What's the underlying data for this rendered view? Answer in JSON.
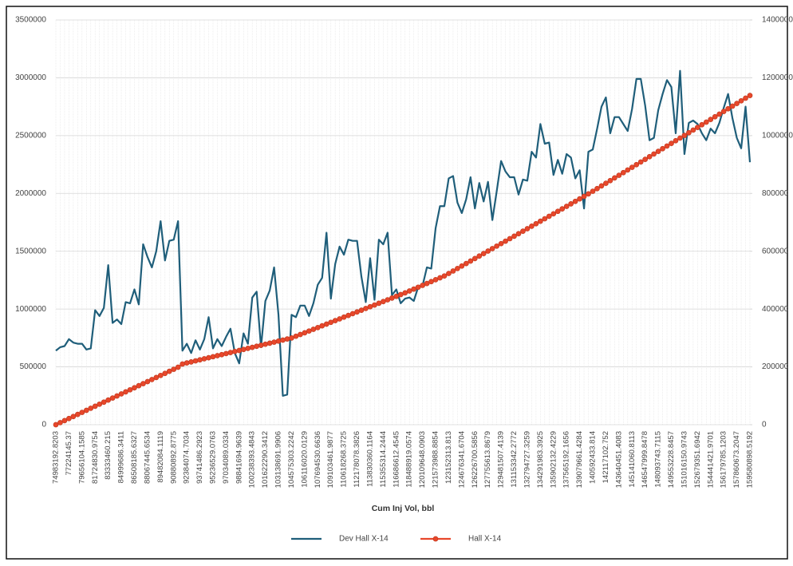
{
  "chart_data": {
    "type": "line",
    "x_label": "Cum Inj Vol, bbl",
    "categories": [
      "74983192.8203",
      null,
      null,
      "77224145.37",
      null,
      null,
      "79656104.1585",
      null,
      null,
      "81724830.9754",
      null,
      null,
      "83333460.215",
      null,
      null,
      "84999686.3411",
      null,
      null,
      "86508185.6327",
      null,
      null,
      "88067445.6534",
      null,
      null,
      "89482084.1119",
      null,
      null,
      "90880892.8775",
      null,
      null,
      "92384074.7034",
      null,
      null,
      "93741486.2923",
      null,
      null,
      "95236529.0763",
      null,
      null,
      "97034089.0334",
      null,
      null,
      "98841694.9639",
      null,
      null,
      "100238393.4843",
      null,
      null,
      "101622290.3412",
      null,
      null,
      "103138691.9906",
      null,
      null,
      "104575303.2242",
      null,
      null,
      "106116020.0129",
      null,
      null,
      "107694530.6636",
      null,
      null,
      "109103461.9877",
      null,
      null,
      "110618268.3725",
      null,
      null,
      "112178078.3826",
      null,
      null,
      "113830360.1164",
      null,
      null,
      "115355314.2444",
      null,
      null,
      "116686612.4545",
      null,
      null,
      "118488919.0574",
      null,
      null,
      "120109648.0903",
      null,
      null,
      "121573988.8854",
      null,
      null,
      "123152313.813",
      null,
      null,
      "124676341.6704",
      null,
      null,
      "126226700.5856",
      null,
      null,
      "127755613.8679",
      null,
      null,
      "129481507.4139",
      null,
      null,
      "131153342.2772",
      null,
      null,
      "132794727.3259",
      null,
      null,
      "134291983.3925",
      null,
      null,
      "135902132.4229",
      null,
      null,
      "137565192.1656",
      null,
      null,
      "139079661.4284",
      null,
      null,
      "140592433.814",
      null,
      null,
      "142117102.752",
      null,
      null,
      "143640451.4083",
      null,
      null,
      "145141060.8113",
      null,
      null,
      "146547999.8478",
      null,
      null,
      "148093743.7115",
      null,
      null,
      "149553228.8457",
      null,
      null,
      "151016150.9743",
      null,
      null,
      "152679351.6942",
      null,
      null,
      "154441421.9701",
      null,
      null,
      "156179785.1203",
      null,
      null,
      "157860673.2047",
      null,
      null,
      "159580898.5192"
    ],
    "series": [
      {
        "name": "Dev Hall X-14",
        "color": "#1f5e7a",
        "axis": "y",
        "values": [
          640000,
          670000,
          680000,
          740000,
          710000,
          700000,
          700000,
          650000,
          660000,
          990000,
          940000,
          1010000,
          1380000,
          880000,
          910000,
          870000,
          1060000,
          1050000,
          1170000,
          1040000,
          1560000,
          1450000,
          1360000,
          1500000,
          1760000,
          1420000,
          1590000,
          1600000,
          1760000,
          640000,
          700000,
          620000,
          730000,
          650000,
          740000,
          930000,
          660000,
          740000,
          680000,
          760000,
          830000,
          620000,
          530000,
          790000,
          700000,
          1100000,
          1150000,
          670000,
          1070000,
          1160000,
          1360000,
          950000,
          250000,
          260000,
          950000,
          930000,
          1030000,
          1030000,
          940000,
          1050000,
          1210000,
          1270000,
          1660000,
          1090000,
          1390000,
          1540000,
          1470000,
          1600000,
          1590000,
          1590000,
          1280000,
          1060000,
          1440000,
          1080000,
          1600000,
          1560000,
          1660000,
          1120000,
          1170000,
          1050000,
          1090000,
          1100000,
          1070000,
          1190000,
          1200000,
          1360000,
          1350000,
          1700000,
          1890000,
          1890000,
          2130000,
          2150000,
          1920000,
          1830000,
          1950000,
          2140000,
          1870000,
          2090000,
          1930000,
          2100000,
          1770000,
          2020000,
          2280000,
          2190000,
          2140000,
          2140000,
          1990000,
          2120000,
          2110000,
          2360000,
          2310000,
          2600000,
          2430000,
          2440000,
          2160000,
          2290000,
          2170000,
          2340000,
          2310000,
          2130000,
          2200000,
          1870000,
          2360000,
          2380000,
          2560000,
          2750000,
          2830000,
          2520000,
          2660000,
          2660000,
          2600000,
          2540000,
          2730000,
          2990000,
          2990000,
          2760000,
          2460000,
          2480000,
          2720000,
          2860000,
          2980000,
          2920000,
          2520000,
          3060000,
          2340000,
          2610000,
          2630000,
          2600000,
          2520000,
          2460000,
          2560000,
          2520000,
          2610000,
          2740000,
          2860000,
          2650000,
          2480000,
          2390000,
          2750000,
          2270000
        ]
      },
      {
        "name": "Hall X-14",
        "color": "#e8472b",
        "axis": "y2",
        "marker": true,
        "values": [
          0,
          7100,
          14200,
          21300,
          28400,
          35500,
          42600,
          49700,
          56800,
          63900,
          71000,
          78100,
          85200,
          92300,
          99400,
          106500,
          113600,
          120700,
          127800,
          134900,
          142000,
          149100,
          156200,
          163300,
          170400,
          177500,
          184600,
          191700,
          198800,
          210000,
          213600,
          217200,
          220800,
          224400,
          228000,
          231600,
          235200,
          238800,
          242400,
          246000,
          249600,
          253200,
          256800,
          260400,
          264000,
          267600,
          271200,
          274800,
          278400,
          282000,
          285600,
          289200,
          292800,
          296400,
          300000,
          306000,
          312000,
          318000,
          324000,
          330000,
          336000,
          342000,
          348000,
          354000,
          360000,
          366000,
          372000,
          378000,
          384000,
          390000,
          396000,
          402000,
          408000,
          414000,
          420000,
          426000,
          432000,
          438000,
          444000,
          450000,
          456000,
          462500,
          469000,
          475500,
          482000,
          488500,
          495000,
          501500,
          508000,
          514500,
          523100,
          531700,
          540300,
          548900,
          557500,
          566100,
          574700,
          583300,
          591900,
          600500,
          609100,
          617700,
          626300,
          634900,
          643500,
          652100,
          660700,
          669300,
          677900,
          686500,
          695100,
          703700,
          712300,
          720900,
          729500,
          738100,
          746700,
          755300,
          763900,
          772500,
          781100,
          789700,
          798300,
          807500,
          816700,
          825900,
          835100,
          844300,
          853500,
          862700,
          871900,
          881100,
          890300,
          899500,
          908700,
          917900,
          927100,
          936300,
          945500,
          954700,
          963900,
          973100,
          982300,
          991500,
          1000700,
          1009900,
          1019100,
          1028300,
          1037500,
          1046700,
          1055900,
          1065100,
          1074300,
          1083500,
          1092700,
          1101900,
          1111100,
          1120300,
          1129500,
          1138700
        ]
      }
    ],
    "ylim": [
      0,
      3500000
    ],
    "yticks": [
      0,
      500000,
      1000000,
      1500000,
      2000000,
      2500000,
      3000000,
      3500000
    ],
    "y2lim": [
      0,
      1400000
    ],
    "y2ticks": [
      0,
      200000,
      400000,
      600000,
      800000,
      1000000,
      1200000,
      1400000
    ],
    "grid": true,
    "legend": "bottom"
  }
}
